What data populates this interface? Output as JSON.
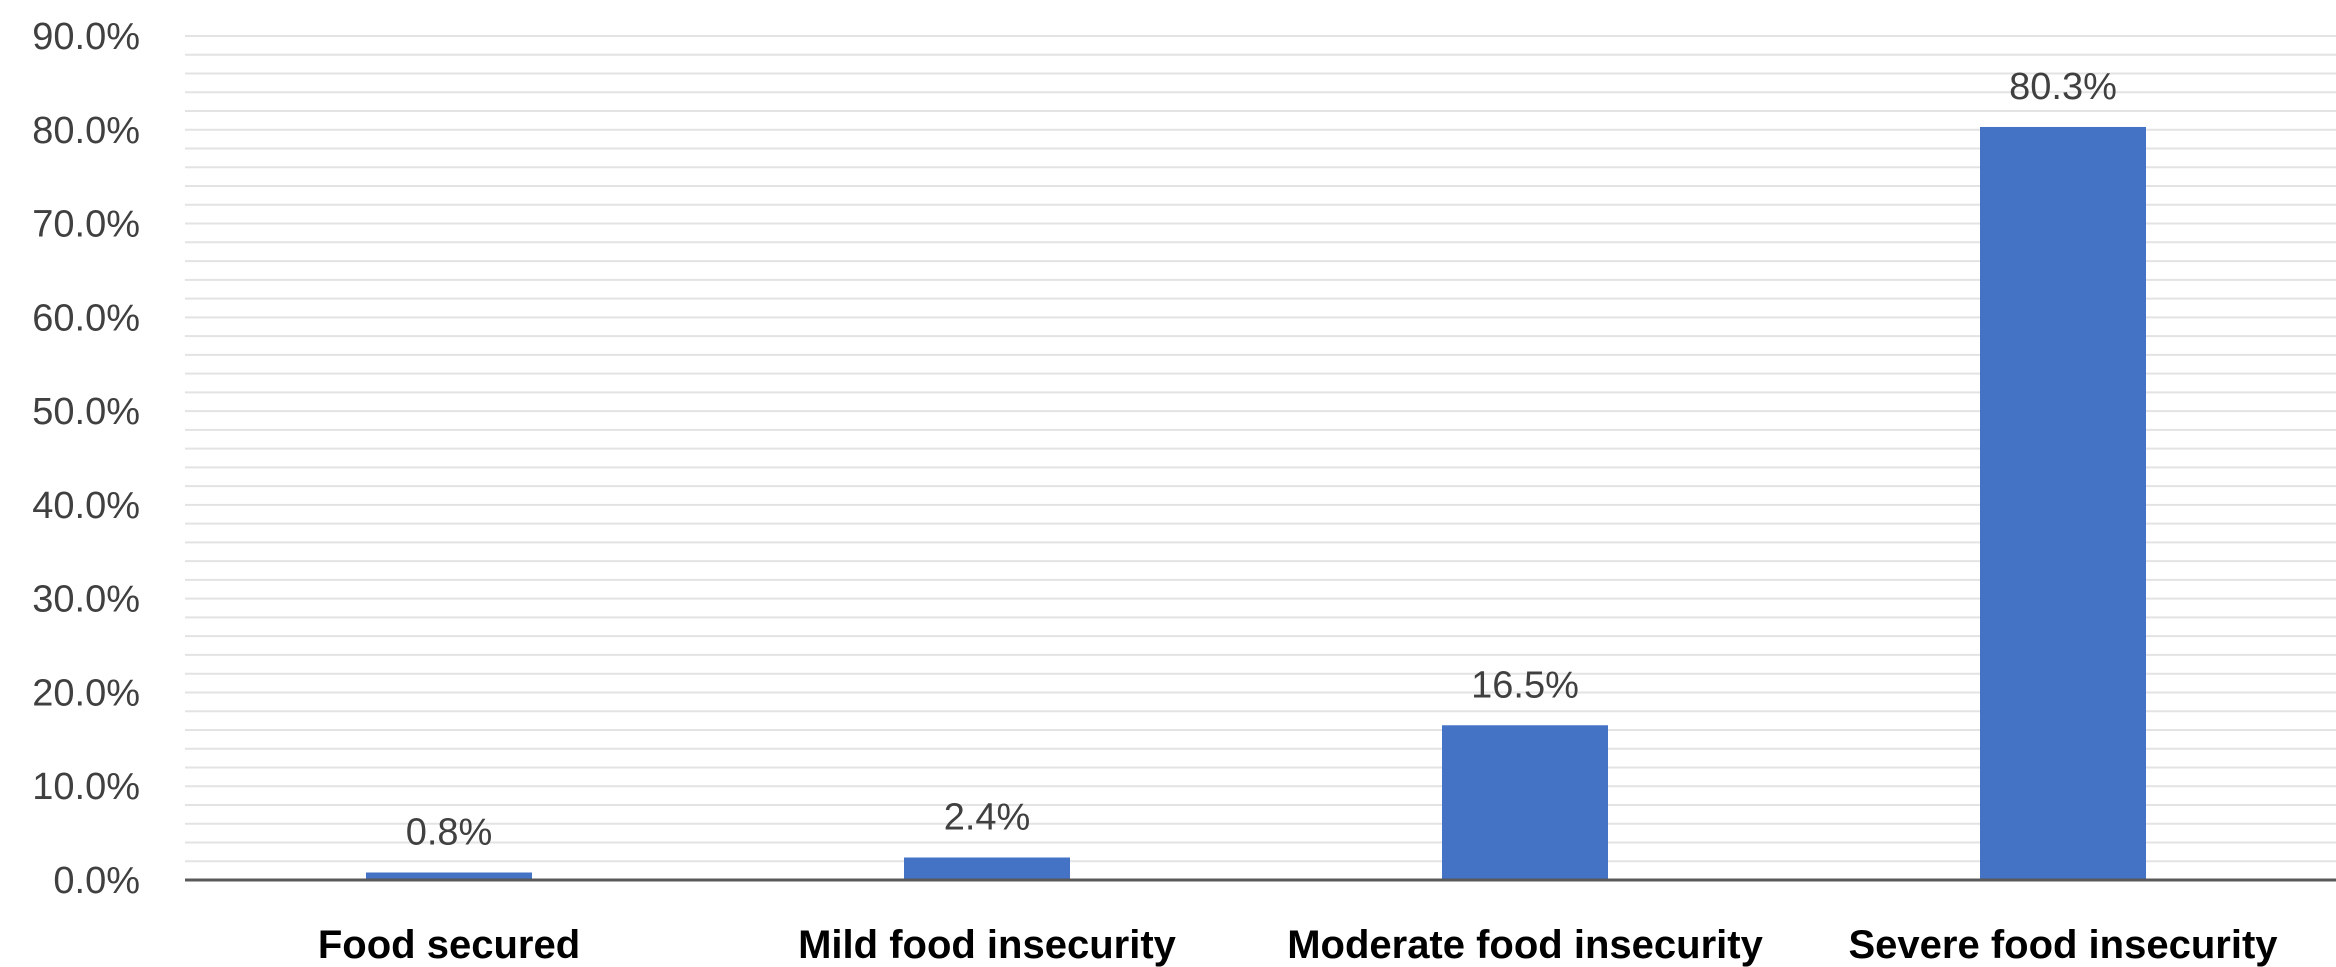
{
  "chart_data": {
    "type": "bar",
    "categories": [
      "Food secured",
      "Mild food insecurity",
      "Moderate food insecurity",
      "Severe food insecurity"
    ],
    "values": [
      0.8,
      2.4,
      16.5,
      80.3
    ],
    "data_labels": [
      "0.8%",
      "2.4%",
      "16.5%",
      "80.3%"
    ],
    "title": "",
    "xlabel": "",
    "ylabel": "",
    "ylim": [
      0,
      90
    ],
    "y_ticks": [
      0,
      10,
      20,
      30,
      40,
      50,
      60,
      70,
      80,
      90
    ],
    "y_tick_labels": [
      "0.0%",
      "10.0%",
      "20.0%",
      "30.0%",
      "40.0%",
      "50.0%",
      "60.0%",
      "70.0%",
      "80.0%",
      "90.0%"
    ],
    "grid": true,
    "legend": "none",
    "bar_color": "#4472c4"
  }
}
